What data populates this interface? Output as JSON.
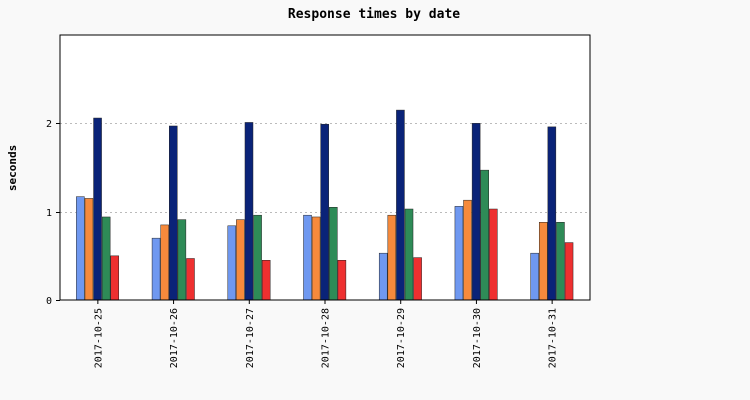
{
  "chart_data": {
    "type": "bar",
    "title": "Response times by date",
    "xlabel": "",
    "ylabel": "seconds",
    "ylim": [
      0,
      3
    ],
    "yticks": [
      0,
      1,
      2
    ],
    "grid": true,
    "categories": [
      "2017-10-25",
      "2017-10-26",
      "2017-10-27",
      "2017-10-28",
      "2017-10-29",
      "2017-10-30",
      "2017-10-31"
    ],
    "series": [
      {
        "color": "#6f98f0",
        "values": [
          1.17,
          0.7,
          0.84,
          0.96,
          0.53,
          1.06,
          0.53
        ]
      },
      {
        "color": "#f68a3c",
        "values": [
          1.15,
          0.85,
          0.91,
          0.94,
          0.96,
          1.13,
          0.88
        ]
      },
      {
        "color": "#0a2378",
        "values": [
          2.06,
          1.97,
          2.01,
          1.99,
          2.15,
          2.0,
          1.96
        ]
      },
      {
        "color": "#2e8b57",
        "values": [
          0.94,
          0.91,
          0.96,
          1.05,
          1.03,
          1.47,
          0.88
        ]
      },
      {
        "color": "#ee3030",
        "values": [
          0.5,
          0.47,
          0.45,
          0.45,
          0.48,
          1.03,
          0.65
        ]
      }
    ]
  }
}
